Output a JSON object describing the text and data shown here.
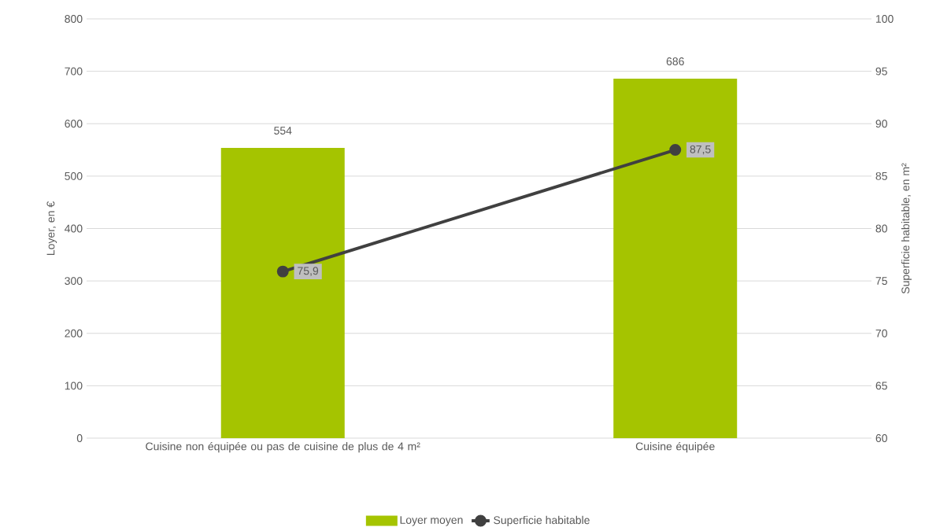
{
  "chart_data": {
    "type": "bar",
    "categories": [
      "Cuisine non équipée ou pas de cuisine de plus de 4 m²",
      "Cuisine équipée"
    ],
    "series": [
      {
        "name": "Loyer moyen",
        "color": "#a5c400",
        "values": [
          554,
          686
        ],
        "value_labels": [
          "554",
          "686"
        ]
      },
      {
        "name": "Superficie habitable",
        "type": "line",
        "axis": "y2",
        "color": "#404040",
        "marker": "circle",
        "values": [
          75.9,
          87.5
        ],
        "value_labels": [
          "75,9",
          "87,5"
        ]
      }
    ],
    "ylabel": "Loyer, en €",
    "y2label": "Superficie habitable, en m²",
    "ylim": [
      0,
      800
    ],
    "yticks": [
      0,
      100,
      200,
      300,
      400,
      500,
      600,
      700,
      800
    ],
    "y2lim": [
      60,
      100
    ],
    "y2ticks": [
      60,
      65,
      70,
      75,
      80,
      85,
      90,
      95,
      100
    ],
    "grid": "y",
    "legend": "bottom"
  }
}
